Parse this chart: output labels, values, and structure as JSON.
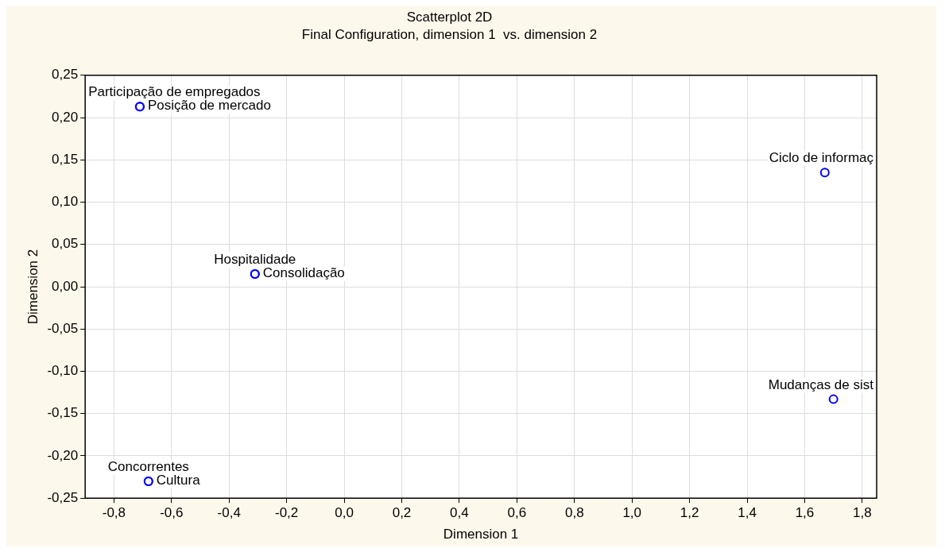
{
  "chart_data": {
    "type": "scatter",
    "title": "Scatterplot 2D",
    "subtitle": "Final Configuration, dimension 1  vs. dimension 2",
    "xlabel": "Dimension 1",
    "ylabel": "Dimension 2",
    "x": [
      -0.71,
      -0.71,
      -0.31,
      -0.31,
      1.67,
      1.7,
      -0.68,
      -0.68
    ],
    "series": [
      {
        "color": "#0000ff",
        "values": [
          0.213,
          0.213,
          0.015,
          0.015,
          0.135,
          -0.133,
          -0.23,
          -0.23
        ]
      }
    ],
    "marker": "circle",
    "grid": true,
    "xlim": [
      -0.9,
      1.85
    ],
    "ylim": [
      -0.25,
      0.25
    ],
    "xticks": [
      {
        "value": -0.8,
        "label": "-0,8"
      },
      {
        "value": -0.6,
        "label": "-0,6"
      },
      {
        "value": -0.4,
        "label": "-0,4"
      },
      {
        "value": -0.2,
        "label": "-0,2"
      },
      {
        "value": 0,
        "label": "0,0"
      },
      {
        "value": 0.2,
        "label": "0,2"
      },
      {
        "value": 0.4,
        "label": "0,4"
      },
      {
        "value": 0.6,
        "label": "0,6"
      },
      {
        "value": 0.8,
        "label": "0,8"
      },
      {
        "value": 1,
        "label": "1,0"
      },
      {
        "value": 1.2,
        "label": "1,2"
      },
      {
        "value": 1.4,
        "label": "1,4"
      },
      {
        "value": 1.6,
        "label": "1,6"
      },
      {
        "value": 1.8,
        "label": "1,8"
      }
    ],
    "yticks": [
      {
        "value": -0.25,
        "label": "-0,25"
      },
      {
        "value": -0.2,
        "label": "-0,20"
      },
      {
        "value": -0.15,
        "label": "-0,15"
      },
      {
        "value": -0.1,
        "label": "-0,10"
      },
      {
        "value": -0.05,
        "label": "-0,05"
      },
      {
        "value": 0,
        "label": "0,00"
      },
      {
        "value": 0.05,
        "label": "0,05"
      },
      {
        "value": 0.1,
        "label": "0,10"
      },
      {
        "value": 0.15,
        "label": "0,15"
      },
      {
        "value": 0.2,
        "label": "0,20"
      },
      {
        "value": 0.25,
        "label": "0,25"
      }
    ],
    "annotations": [
      {
        "text": "Participação de empregados",
        "x": -0.71,
        "y": 0.213
      },
      {
        "text": "Posição de mercado",
        "x": -0.71,
        "y": 0.213
      },
      {
        "text": "Hospitalidade",
        "x": -0.31,
        "y": 0.015
      },
      {
        "text": "Consolidação",
        "x": -0.31,
        "y": 0.015
      },
      {
        "text": "Ciclo de informaç",
        "x": 1.67,
        "y": 0.135
      },
      {
        "text": "Mudanças de sist",
        "x": 1.7,
        "y": -0.133
      },
      {
        "text": "Concorrentes",
        "x": -0.68,
        "y": -0.23
      },
      {
        "text": "Cultura",
        "x": -0.68,
        "y": -0.23
      }
    ]
  }
}
